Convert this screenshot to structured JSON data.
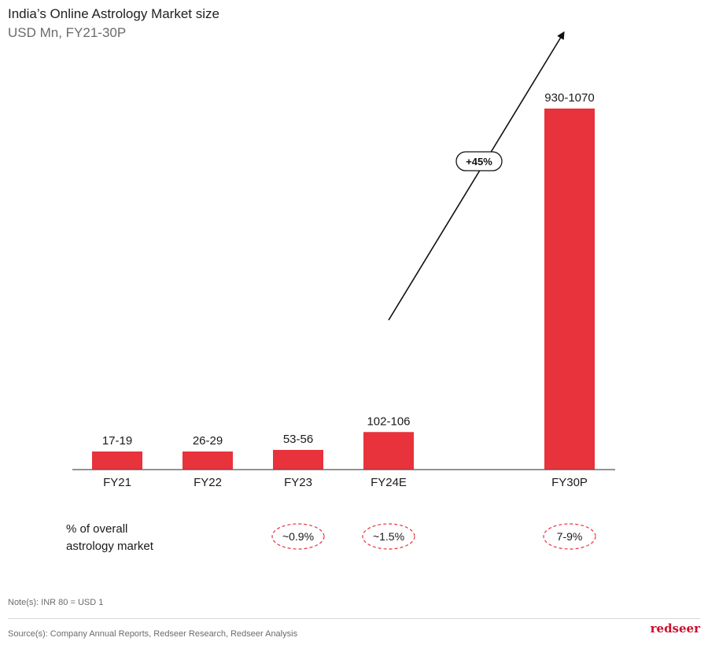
{
  "header": {
    "title": "India’s Online Astrology Market size",
    "subtitle": "USD Mn, FY21-30P"
  },
  "colors": {
    "bar": "#e8323c",
    "axis": "#555555",
    "arrow": "#111111",
    "dashed_circle": "#e8323c",
    "logo": "#c8102e"
  },
  "chart_data": {
    "type": "bar",
    "title": "India’s Online Astrology Market size",
    "subtitle": "USD Mn, FY21-30P",
    "categories": [
      "FY21",
      "FY22",
      "FY23",
      "FY24E",
      "FY30P"
    ],
    "value_labels": [
      "17-19",
      "26-29",
      "53-56",
      "102-106",
      "930-1070"
    ],
    "values_low": [
      17,
      26,
      53,
      102,
      930
    ],
    "values_high": [
      19,
      29,
      56,
      106,
      1070
    ],
    "values_mid": [
      18,
      27.5,
      54.5,
      104,
      1000
    ],
    "growth_annotation": "+45%",
    "share_of_overall_market": [
      "",
      "",
      "~0.9%",
      "~1.5%",
      "7-9%"
    ],
    "grid": false,
    "legend": "none"
  },
  "share_row": {
    "label_line1": "% of overall",
    "label_line2": "astrology market"
  },
  "footer": {
    "note": "Note(s): INR 80 = USD 1",
    "source": "Source(s): Company Annual Reports, Redseer Research, Redseer Analysis",
    "logo": "redseer"
  }
}
